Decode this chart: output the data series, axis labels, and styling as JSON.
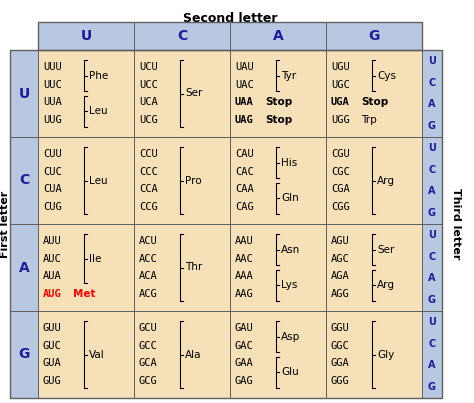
{
  "title_top": "Second letter",
  "title_left": "First letter",
  "title_right": "Third letter",
  "second_letters": [
    "U",
    "C",
    "A",
    "G"
  ],
  "first_letters": [
    "U",
    "C",
    "A",
    "G"
  ],
  "third_letters": [
    "U",
    "C",
    "A",
    "G"
  ],
  "header_bg": "#b8c8e0",
  "cell_bg": "#f5e0b8",
  "fig_w": 4.74,
  "fig_h": 4.03,
  "dpi": 100,
  "cells": [
    {
      "row": 0,
      "col": 0,
      "codons": [
        "UUU",
        "UUC",
        "UUA",
        "UUG"
      ],
      "bold_idx": [],
      "red_idx": [],
      "groups": [
        {
          "idx": [
            0,
            1
          ],
          "aa": "Phe",
          "bold": false,
          "red": false
        },
        {
          "idx": [
            2,
            3
          ],
          "aa": "Leu",
          "bold": false,
          "red": false
        }
      ]
    },
    {
      "row": 0,
      "col": 1,
      "codons": [
        "UCU",
        "UCC",
        "UCA",
        "UCG"
      ],
      "bold_idx": [],
      "red_idx": [],
      "groups": [
        {
          "idx": [
            0,
            1,
            2,
            3
          ],
          "aa": "Ser",
          "bold": false,
          "red": false
        }
      ]
    },
    {
      "row": 0,
      "col": 2,
      "codons": [
        "UAU",
        "UAC",
        "UAA",
        "UAG"
      ],
      "bold_idx": [
        2,
        3
      ],
      "red_idx": [],
      "groups": [
        {
          "idx": [
            0,
            1
          ],
          "aa": "Tyr",
          "bold": false,
          "red": false
        },
        {
          "idx": [
            2
          ],
          "aa": "Stop",
          "bold": true,
          "red": false,
          "inline": true
        },
        {
          "idx": [
            3
          ],
          "aa": "Stop",
          "bold": true,
          "red": false,
          "inline": true
        }
      ]
    },
    {
      "row": 0,
      "col": 3,
      "codons": [
        "UGU",
        "UGC",
        "UGA",
        "UGG"
      ],
      "bold_idx": [
        2
      ],
      "red_idx": [],
      "groups": [
        {
          "idx": [
            0,
            1
          ],
          "aa": "Cys",
          "bold": false,
          "red": false
        },
        {
          "idx": [
            2
          ],
          "aa": "Stop",
          "bold": true,
          "red": false,
          "inline": true
        },
        {
          "idx": [
            3
          ],
          "aa": "Trp",
          "bold": false,
          "red": false,
          "inline": true
        }
      ]
    },
    {
      "row": 1,
      "col": 0,
      "codons": [
        "CUU",
        "CUC",
        "CUA",
        "CUG"
      ],
      "bold_idx": [],
      "red_idx": [],
      "groups": [
        {
          "idx": [
            0,
            1,
            2,
            3
          ],
          "aa": "Leu",
          "bold": false,
          "red": false
        }
      ]
    },
    {
      "row": 1,
      "col": 1,
      "codons": [
        "CCU",
        "CCC",
        "CCA",
        "CCG"
      ],
      "bold_idx": [],
      "red_idx": [],
      "groups": [
        {
          "idx": [
            0,
            1,
            2,
            3
          ],
          "aa": "Pro",
          "bold": false,
          "red": false
        }
      ]
    },
    {
      "row": 1,
      "col": 2,
      "codons": [
        "CAU",
        "CAC",
        "CAA",
        "CAG"
      ],
      "bold_idx": [],
      "red_idx": [],
      "groups": [
        {
          "idx": [
            0,
            1
          ],
          "aa": "His",
          "bold": false,
          "red": false
        },
        {
          "idx": [
            2,
            3
          ],
          "aa": "Gln",
          "bold": false,
          "red": false
        }
      ]
    },
    {
      "row": 1,
      "col": 3,
      "codons": [
        "CGU",
        "CGC",
        "CGA",
        "CGG"
      ],
      "bold_idx": [],
      "red_idx": [],
      "groups": [
        {
          "idx": [
            0,
            1,
            2,
            3
          ],
          "aa": "Arg",
          "bold": false,
          "red": false
        }
      ]
    },
    {
      "row": 2,
      "col": 0,
      "codons": [
        "AUU",
        "AUC",
        "AUA",
        "AUG"
      ],
      "bold_idx": [
        3
      ],
      "red_idx": [
        3
      ],
      "groups": [
        {
          "idx": [
            0,
            1,
            2
          ],
          "aa": "Ile",
          "bold": false,
          "red": false
        },
        {
          "idx": [
            3
          ],
          "aa": "Met",
          "bold": true,
          "red": true,
          "inline": true
        }
      ]
    },
    {
      "row": 2,
      "col": 1,
      "codons": [
        "ACU",
        "ACC",
        "ACA",
        "ACG"
      ],
      "bold_idx": [],
      "red_idx": [],
      "groups": [
        {
          "idx": [
            0,
            1,
            2,
            3
          ],
          "aa": "Thr",
          "bold": false,
          "red": false
        }
      ]
    },
    {
      "row": 2,
      "col": 2,
      "codons": [
        "AAU",
        "AAC",
        "AAA",
        "AAG"
      ],
      "bold_idx": [],
      "red_idx": [],
      "groups": [
        {
          "idx": [
            0,
            1
          ],
          "aa": "Asn",
          "bold": false,
          "red": false
        },
        {
          "idx": [
            2,
            3
          ],
          "aa": "Lys",
          "bold": false,
          "red": false
        }
      ]
    },
    {
      "row": 2,
      "col": 3,
      "codons": [
        "AGU",
        "AGC",
        "AGA",
        "AGG"
      ],
      "bold_idx": [],
      "red_idx": [],
      "groups": [
        {
          "idx": [
            0,
            1
          ],
          "aa": "Ser",
          "bold": false,
          "red": false
        },
        {
          "idx": [
            2,
            3
          ],
          "aa": "Arg",
          "bold": false,
          "red": false
        }
      ]
    },
    {
      "row": 3,
      "col": 0,
      "codons": [
        "GUU",
        "GUC",
        "GUA",
        "GUG"
      ],
      "bold_idx": [],
      "red_idx": [],
      "groups": [
        {
          "idx": [
            0,
            1,
            2,
            3
          ],
          "aa": "Val",
          "bold": false,
          "red": false
        }
      ]
    },
    {
      "row": 3,
      "col": 1,
      "codons": [
        "GCU",
        "GCC",
        "GCA",
        "GCG"
      ],
      "bold_idx": [],
      "red_idx": [],
      "groups": [
        {
          "idx": [
            0,
            1,
            2,
            3
          ],
          "aa": "Ala",
          "bold": false,
          "red": false
        }
      ]
    },
    {
      "row": 3,
      "col": 2,
      "codons": [
        "GAU",
        "GAC",
        "GAA",
        "GAG"
      ],
      "bold_idx": [],
      "red_idx": [],
      "groups": [
        {
          "idx": [
            0,
            1
          ],
          "aa": "Asp",
          "bold": false,
          "red": false
        },
        {
          "idx": [
            2,
            3
          ],
          "aa": "Glu",
          "bold": false,
          "red": false
        }
      ]
    },
    {
      "row": 3,
      "col": 3,
      "codons": [
        "GGU",
        "GGC",
        "GGA",
        "GGG"
      ],
      "bold_idx": [],
      "red_idx": [],
      "groups": [
        {
          "idx": [
            0,
            1,
            2,
            3
          ],
          "aa": "Gly",
          "bold": false,
          "red": false
        }
      ]
    }
  ]
}
